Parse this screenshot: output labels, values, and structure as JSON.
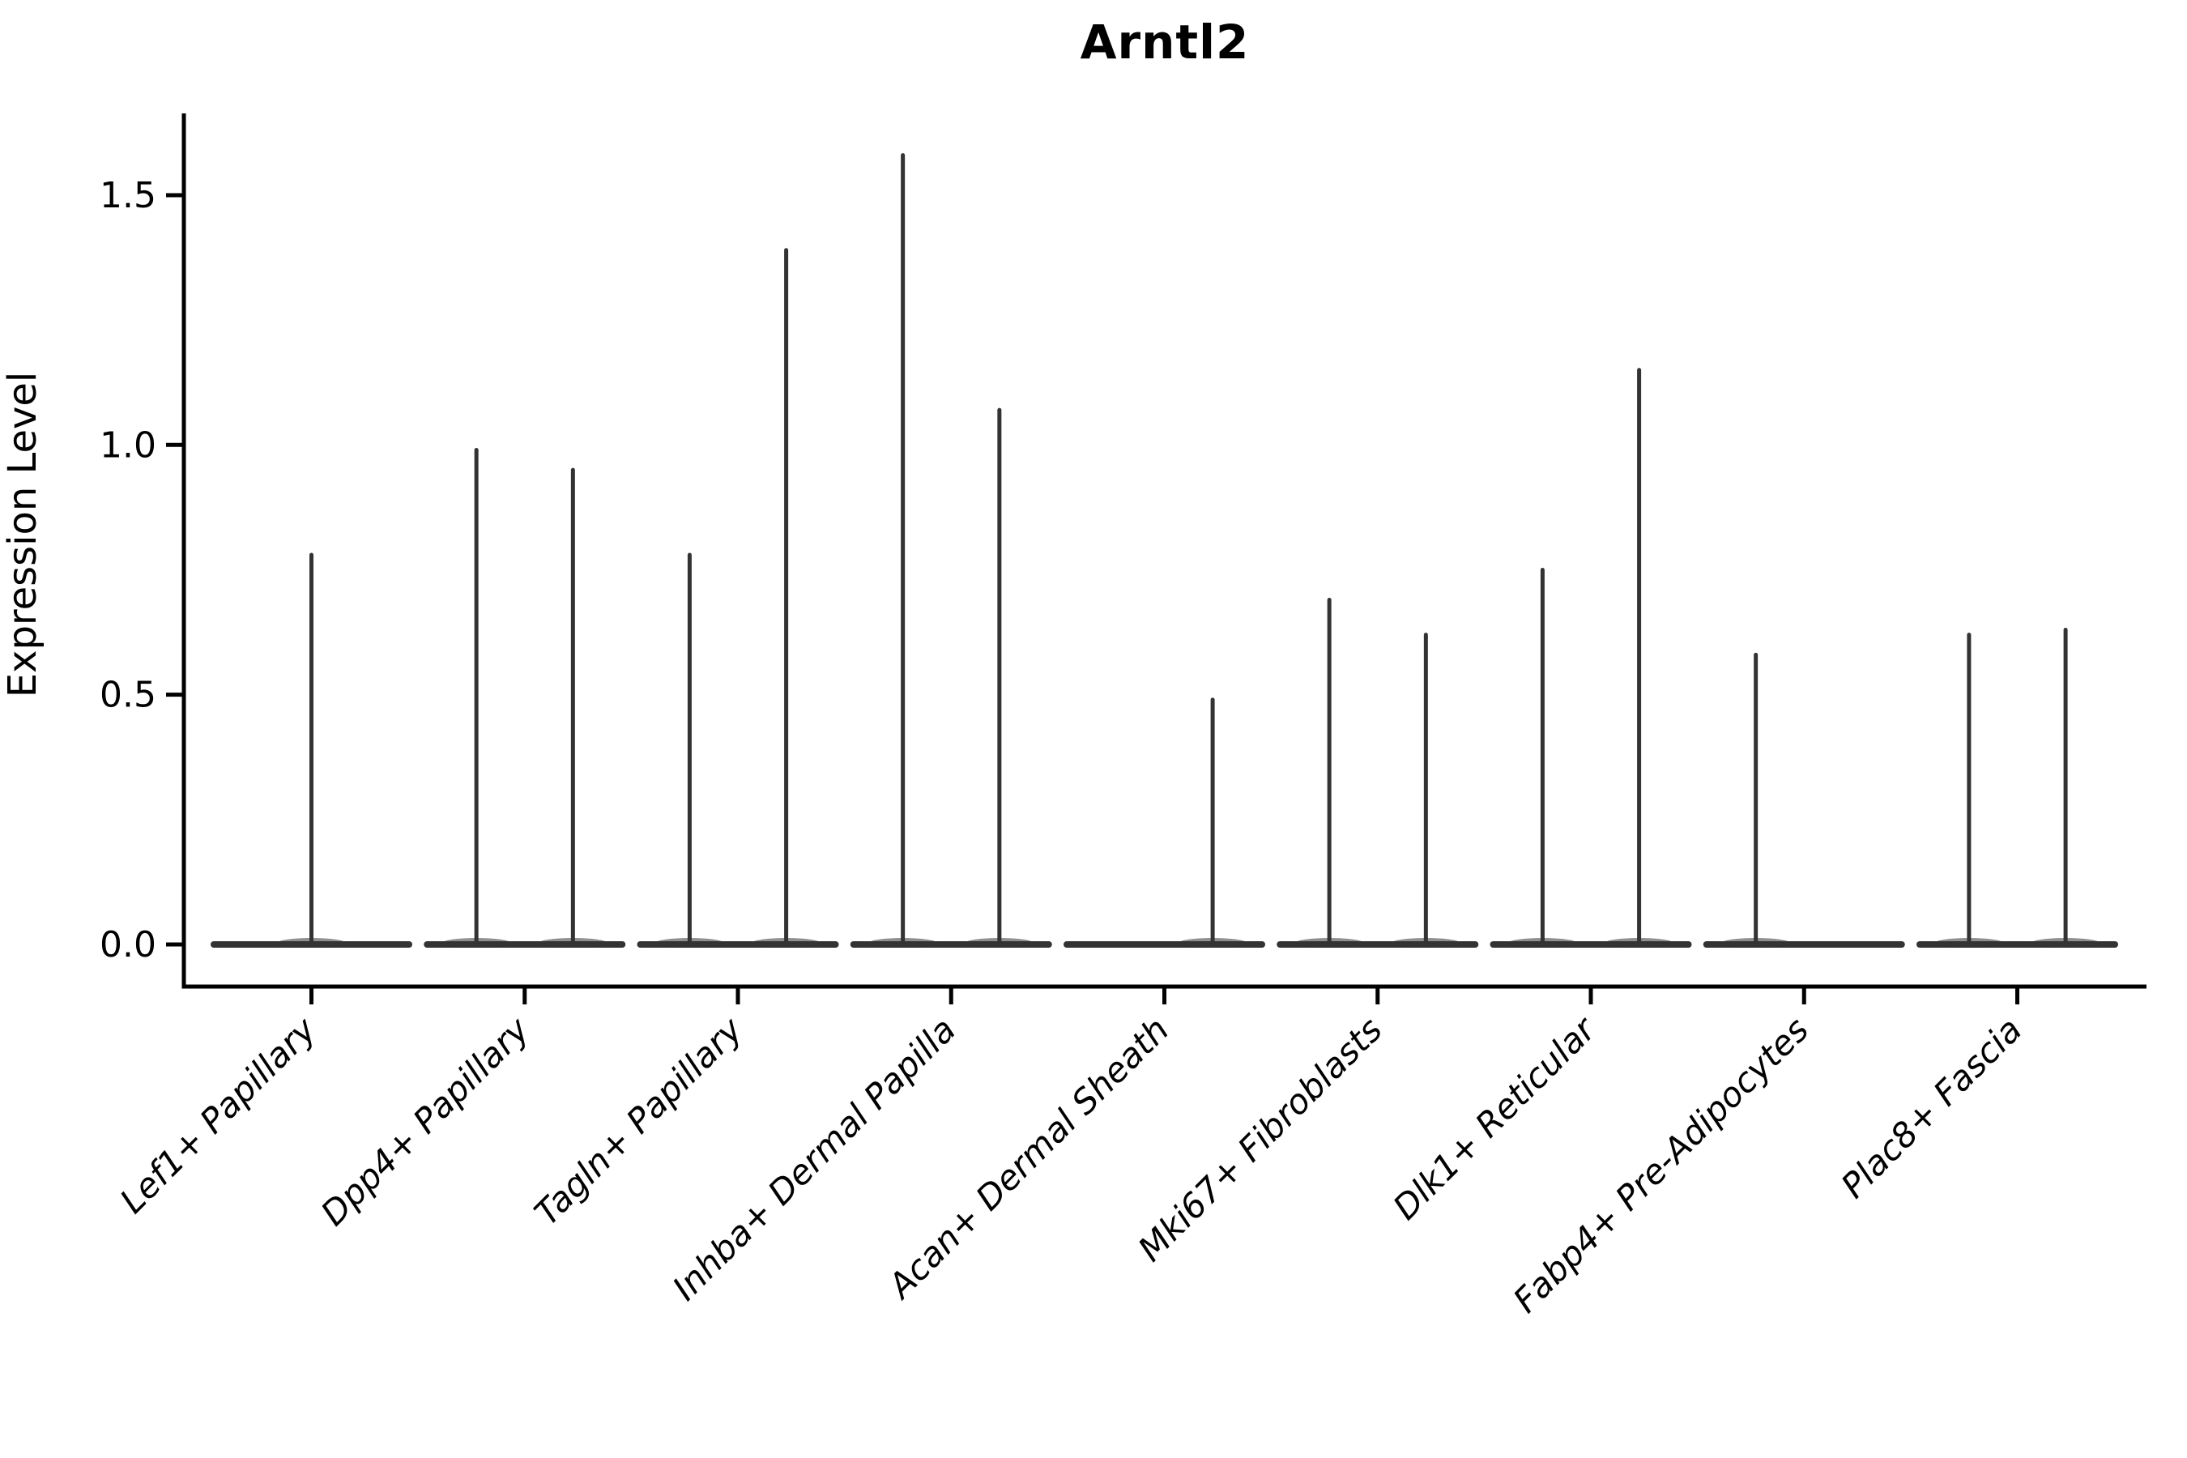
{
  "title": "Arntl2",
  "chart_data": {
    "type": "violin",
    "title": "Arntl2",
    "xlabel": "",
    "ylabel": "Expression Level",
    "ylim": [
      0,
      1.62
    ],
    "grid": false,
    "legend_position": "none",
    "y_ticks": [
      {
        "label": "0.0",
        "value": 0.0
      },
      {
        "label": "0.5",
        "value": 0.5
      },
      {
        "label": "1.0",
        "value": 1.0
      },
      {
        "label": "1.5",
        "value": 1.5
      }
    ],
    "categories": [
      "Lef1+ Papillary",
      "Dpp4+ Papillary",
      "Tagln+ Papillary",
      "Inhba+ Dermal Papilla",
      "Acan+ Dermal Sheath",
      "Mki67+ Fibroblasts",
      "Dlk1+ Reticular",
      "Fabp4+ Pre-Adipocytes",
      "Plac8+ Fascia"
    ],
    "groups": [
      {
        "label": "Lef1+ Papillary",
        "violins": [
          {
            "position": "center",
            "max": 0.78
          }
        ]
      },
      {
        "label": "Dpp4+ Papillary",
        "violins": [
          {
            "position": "left",
            "max": 0.99
          },
          {
            "position": "right",
            "max": 0.95
          }
        ]
      },
      {
        "label": "Tagln+ Papillary",
        "violins": [
          {
            "position": "left",
            "max": 0.78
          },
          {
            "position": "right",
            "max": 1.39
          }
        ]
      },
      {
        "label": "Inhba+ Dermal Papilla",
        "violins": [
          {
            "position": "left",
            "max": 1.58
          },
          {
            "position": "right",
            "max": 1.07
          }
        ]
      },
      {
        "label": "Acan+ Dermal Sheath",
        "violins": [
          {
            "position": "right",
            "max": 0.49
          }
        ]
      },
      {
        "label": "Mki67+ Fibroblasts",
        "violins": [
          {
            "position": "left",
            "max": 0.69
          },
          {
            "position": "right",
            "max": 0.62
          }
        ]
      },
      {
        "label": "Dlk1+ Reticular",
        "violins": [
          {
            "position": "left",
            "max": 0.75
          },
          {
            "position": "right",
            "max": 1.15
          }
        ]
      },
      {
        "label": "Fabp4+ Pre-Adipocytes",
        "violins": [
          {
            "position": "left",
            "max": 0.58
          }
        ]
      },
      {
        "label": "Plac8+ Fascia",
        "violins": [
          {
            "position": "left",
            "max": 0.62
          },
          {
            "position": "right",
            "max": 0.63
          }
        ]
      }
    ],
    "colors": {
      "violin": "#333333",
      "axis": "#000000",
      "text": "#000000",
      "background": "#ffffff"
    }
  }
}
